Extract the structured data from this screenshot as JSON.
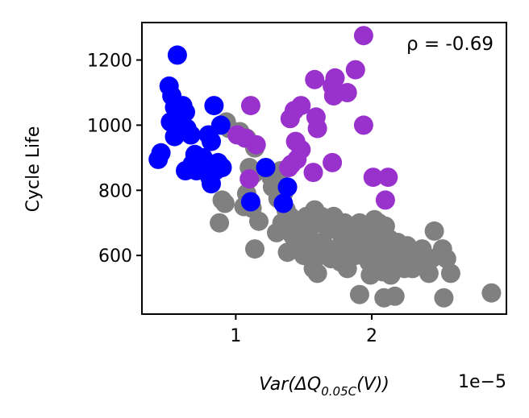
{
  "chart_data": {
    "type": "scatter",
    "title": "",
    "xlabel": "Var(ΔQ0.05C(V))",
    "xlabel_parts": {
      "main": "Var(ΔQ",
      "sub": "0.05C",
      "tail": "(V))"
    },
    "ylabel": "Cycle Life",
    "x_offset_label": "1e−5",
    "annotation": "ρ = -0.69",
    "xlim": [
      0.31,
      2.99
    ],
    "ylim": [
      420,
      1315
    ],
    "x_ticks": [
      1,
      2
    ],
    "x_tick_labels": [
      "1",
      "2"
    ],
    "y_ticks": [
      600,
      800,
      1000,
      1200
    ],
    "y_tick_labels": [
      "600",
      "800",
      "1000",
      "1200"
    ],
    "grid": false,
    "colors": {
      "blue": "#0000ff",
      "gray": "#808080",
      "purple": "#9932cc"
    },
    "series": [
      {
        "color": "#808080",
        "points": [
          [
            0.93,
            1010
          ],
          [
            0.95,
            990
          ],
          [
            0.9,
            770
          ],
          [
            0.92,
            760
          ],
          [
            0.88,
            700
          ],
          [
            1.03,
            980
          ],
          [
            1.08,
            960
          ],
          [
            1.14,
            930
          ],
          [
            1.1,
            870
          ],
          [
            1.13,
            850
          ],
          [
            1.08,
            790
          ],
          [
            1.06,
            750
          ],
          [
            1.12,
            745
          ],
          [
            1.17,
            705
          ],
          [
            1.14,
            620
          ],
          [
            1.26,
            840
          ],
          [
            1.27,
            810
          ],
          [
            1.33,
            860
          ],
          [
            1.38,
            810
          ],
          [
            1.35,
            790
          ],
          [
            1.31,
            775
          ],
          [
            1.37,
            740
          ],
          [
            1.4,
            720
          ],
          [
            1.34,
            700
          ],
          [
            1.3,
            670
          ],
          [
            1.39,
            680
          ],
          [
            1.45,
            690
          ],
          [
            1.42,
            660
          ],
          [
            1.48,
            640
          ],
          [
            1.44,
            620
          ],
          [
            1.38,
            610
          ],
          [
            1.47,
            700
          ],
          [
            1.52,
            720
          ],
          [
            1.56,
            700
          ],
          [
            1.58,
            740
          ],
          [
            1.54,
            660
          ],
          [
            1.59,
            630
          ],
          [
            1.55,
            600
          ],
          [
            1.57,
            560
          ],
          [
            1.6,
            545
          ],
          [
            1.63,
            720
          ],
          [
            1.66,
            690
          ],
          [
            1.69,
            680
          ],
          [
            1.64,
            640
          ],
          [
            1.72,
            720
          ],
          [
            1.75,
            700
          ],
          [
            1.78,
            660
          ],
          [
            1.74,
            620
          ],
          [
            1.77,
            580
          ],
          [
            1.8,
            700
          ],
          [
            1.83,
            680
          ],
          [
            1.86,
            650
          ],
          [
            1.84,
            620
          ],
          [
            1.89,
            660
          ],
          [
            1.91,
            700
          ],
          [
            1.94,
            690
          ],
          [
            1.92,
            640
          ],
          [
            1.88,
            600
          ],
          [
            1.95,
            630
          ],
          [
            1.97,
            610
          ],
          [
            1.98,
            580
          ],
          [
            2.0,
            660
          ],
          [
            2.02,
            710
          ],
          [
            2.05,
            700
          ],
          [
            2.07,
            680
          ],
          [
            2.01,
            620
          ],
          [
            2.04,
            600
          ],
          [
            2.06,
            580
          ],
          [
            2.09,
            640
          ],
          [
            2.11,
            610
          ],
          [
            2.1,
            690
          ],
          [
            2.13,
            650
          ],
          [
            2.15,
            620
          ],
          [
            2.17,
            590
          ],
          [
            2.19,
            640
          ],
          [
            2.21,
            610
          ],
          [
            2.2,
            570
          ],
          [
            2.23,
            600
          ],
          [
            2.26,
            630
          ],
          [
            2.28,
            590
          ],
          [
            2.3,
            560
          ],
          [
            2.33,
            600
          ],
          [
            2.35,
            580
          ],
          [
            2.37,
            620
          ],
          [
            2.4,
            570
          ],
          [
            2.42,
            545
          ],
          [
            2.46,
            675
          ],
          [
            2.5,
            600
          ],
          [
            2.52,
            620
          ],
          [
            2.55,
            590
          ],
          [
            2.58,
            545
          ],
          [
            2.53,
            470
          ],
          [
            1.91,
            480
          ],
          [
            2.09,
            470
          ],
          [
            2.17,
            475
          ],
          [
            2.88,
            485
          ],
          [
            1.96,
            650
          ],
          [
            2.03,
            560
          ],
          [
            2.12,
            560
          ],
          [
            2.24,
            560
          ],
          [
            2.44,
            590
          ],
          [
            1.82,
            560
          ],
          [
            1.7,
            590
          ],
          [
            1.5,
            600
          ],
          [
            1.62,
            600
          ],
          [
            2.08,
            550
          ],
          [
            1.99,
            540
          ],
          [
            2.14,
            540
          ]
        ]
      },
      {
        "color": "#0000ff",
        "points": [
          [
            0.57,
            1215
          ],
          [
            0.51,
            1120
          ],
          [
            0.53,
            1090
          ],
          [
            0.55,
            1055
          ],
          [
            0.61,
            1060
          ],
          [
            0.63,
            1040
          ],
          [
            0.57,
            1025
          ],
          [
            0.52,
            1010
          ],
          [
            0.64,
            990
          ],
          [
            0.6,
            980
          ],
          [
            0.67,
            970
          ],
          [
            0.55,
            965
          ],
          [
            0.45,
            915
          ],
          [
            0.43,
            895
          ],
          [
            0.7,
            910
          ],
          [
            0.68,
            880
          ],
          [
            0.74,
            880
          ],
          [
            0.63,
            860
          ],
          [
            0.71,
            860
          ],
          [
            0.78,
            860
          ],
          [
            0.83,
            875
          ],
          [
            0.87,
            885
          ],
          [
            0.85,
            860
          ],
          [
            0.9,
            870
          ],
          [
            0.81,
            840
          ],
          [
            0.82,
            820
          ],
          [
            0.8,
            970
          ],
          [
            0.84,
            1060
          ],
          [
            0.89,
            1000
          ],
          [
            0.82,
            950
          ],
          [
            1.22,
            870
          ],
          [
            1.38,
            810
          ],
          [
            1.35,
            760
          ],
          [
            1.11,
            765
          ],
          [
            0.76,
            900
          ]
        ]
      },
      {
        "color": "#9932cc",
        "points": [
          [
            1.94,
            1275
          ],
          [
            1.88,
            1170
          ],
          [
            1.73,
            1145
          ],
          [
            1.58,
            1140
          ],
          [
            1.71,
            1120
          ],
          [
            1.82,
            1100
          ],
          [
            1.72,
            1090
          ],
          [
            1.11,
            1060
          ],
          [
            1.48,
            1060
          ],
          [
            1.43,
            1045
          ],
          [
            1.59,
            1025
          ],
          [
            1.4,
            1020
          ],
          [
            1.6,
            990
          ],
          [
            1.94,
            1000
          ],
          [
            1.01,
            970
          ],
          [
            1.07,
            960
          ],
          [
            1.15,
            940
          ],
          [
            1.44,
            950
          ],
          [
            1.48,
            925
          ],
          [
            1.45,
            895
          ],
          [
            1.41,
            880
          ],
          [
            1.39,
            870
          ],
          [
            1.71,
            885
          ],
          [
            1.57,
            855
          ],
          [
            1.1,
            835
          ],
          [
            2.01,
            840
          ],
          [
            2.12,
            840
          ],
          [
            2.1,
            770
          ]
        ]
      }
    ]
  }
}
